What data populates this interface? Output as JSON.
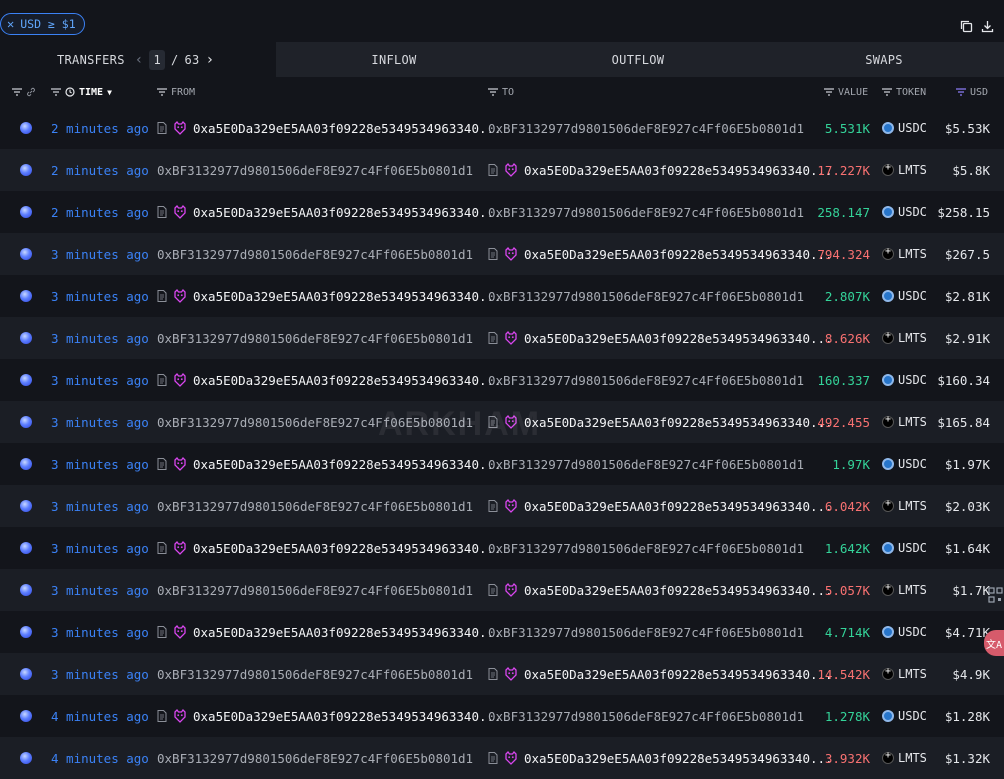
{
  "filter": {
    "label": "USD ≥ $1"
  },
  "top_actions": {
    "copy_icon": "copy-icon",
    "download_icon": "download-icon"
  },
  "tabs": {
    "transfers": "TRANSFERS",
    "page_current": "1",
    "page_sep": "/",
    "page_total": "63",
    "inflow": "INFLOW",
    "outflow": "OUTFLOW",
    "swaps": "SWAPS"
  },
  "columns": {
    "time": "TIME",
    "from": "FROM",
    "to": "TO",
    "value": "VALUE",
    "token": "TOKEN",
    "usd": "USD"
  },
  "watermark": "ARKHAM",
  "side_translate": "文A",
  "colors": {
    "time_link": "#3b82f6",
    "value_in": "#34d399",
    "value_out": "#f87171",
    "active_tab_bg": "#13151b"
  },
  "rows": [
    {
      "time": "2 minutes ago",
      "from": "0xa5E0Da329eE5AA03f09228e5349534963340...",
      "from_entity": true,
      "to": "0xBF3132977d9801506deF8E927c4Ff06E5b0801d1",
      "to_entity": false,
      "value": "5.531K",
      "dir": "pos",
      "token": "USDC",
      "usd": "$5.53K"
    },
    {
      "time": "2 minutes ago",
      "from": "0xBF3132977d9801506deF8E927c4Ff06E5b0801d1",
      "from_entity": false,
      "to": "0xa5E0Da329eE5AA03f09228e5349534963340...",
      "to_entity": true,
      "value": "17.227K",
      "dir": "neg",
      "token": "LMTS",
      "usd": "$5.8K"
    },
    {
      "time": "2 minutes ago",
      "from": "0xa5E0Da329eE5AA03f09228e5349534963340...",
      "from_entity": true,
      "to": "0xBF3132977d9801506deF8E927c4Ff06E5b0801d1",
      "to_entity": false,
      "value": "258.147",
      "dir": "pos",
      "token": "USDC",
      "usd": "$258.15"
    },
    {
      "time": "3 minutes ago",
      "from": "0xBF3132977d9801506deF8E927c4Ff06E5b0801d1",
      "from_entity": false,
      "to": "0xa5E0Da329eE5AA03f09228e5349534963340...",
      "to_entity": true,
      "value": "794.324",
      "dir": "neg",
      "token": "LMTS",
      "usd": "$267.5"
    },
    {
      "time": "3 minutes ago",
      "from": "0xa5E0Da329eE5AA03f09228e5349534963340...",
      "from_entity": true,
      "to": "0xBF3132977d9801506deF8E927c4Ff06E5b0801d1",
      "to_entity": false,
      "value": "2.807K",
      "dir": "pos",
      "token": "USDC",
      "usd": "$2.81K"
    },
    {
      "time": "3 minutes ago",
      "from": "0xBF3132977d9801506deF8E927c4Ff06E5b0801d1",
      "from_entity": false,
      "to": "0xa5E0Da329eE5AA03f09228e5349534963340...",
      "to_entity": true,
      "value": "8.626K",
      "dir": "neg",
      "token": "LMTS",
      "usd": "$2.91K"
    },
    {
      "time": "3 minutes ago",
      "from": "0xa5E0Da329eE5AA03f09228e5349534963340...",
      "from_entity": true,
      "to": "0xBF3132977d9801506deF8E927c4Ff06E5b0801d1",
      "to_entity": false,
      "value": "160.337",
      "dir": "pos",
      "token": "USDC",
      "usd": "$160.34"
    },
    {
      "time": "3 minutes ago",
      "from": "0xBF3132977d9801506deF8E927c4Ff06E5b0801d1",
      "from_entity": false,
      "to": "0xa5E0Da329eE5AA03f09228e5349534963340...",
      "to_entity": true,
      "value": "492.455",
      "dir": "neg",
      "token": "LMTS",
      "usd": "$165.84"
    },
    {
      "time": "3 minutes ago",
      "from": "0xa5E0Da329eE5AA03f09228e5349534963340...",
      "from_entity": true,
      "to": "0xBF3132977d9801506deF8E927c4Ff06E5b0801d1",
      "to_entity": false,
      "value": "1.97K",
      "dir": "pos",
      "token": "USDC",
      "usd": "$1.97K"
    },
    {
      "time": "3 minutes ago",
      "from": "0xBF3132977d9801506deF8E927c4Ff06E5b0801d1",
      "from_entity": false,
      "to": "0xa5E0Da329eE5AA03f09228e5349534963340...",
      "to_entity": true,
      "value": "6.042K",
      "dir": "neg",
      "token": "LMTS",
      "usd": "$2.03K"
    },
    {
      "time": "3 minutes ago",
      "from": "0xa5E0Da329eE5AA03f09228e5349534963340...",
      "from_entity": true,
      "to": "0xBF3132977d9801506deF8E927c4Ff06E5b0801d1",
      "to_entity": false,
      "value": "1.642K",
      "dir": "pos",
      "token": "USDC",
      "usd": "$1.64K"
    },
    {
      "time": "3 minutes ago",
      "from": "0xBF3132977d9801506deF8E927c4Ff06E5b0801d1",
      "from_entity": false,
      "to": "0xa5E0Da329eE5AA03f09228e5349534963340...",
      "to_entity": true,
      "value": "5.057K",
      "dir": "neg",
      "token": "LMTS",
      "usd": "$1.7K"
    },
    {
      "time": "3 minutes ago",
      "from": "0xa5E0Da329eE5AA03f09228e5349534963340...",
      "from_entity": true,
      "to": "0xBF3132977d9801506deF8E927c4Ff06E5b0801d1",
      "to_entity": false,
      "value": "4.714K",
      "dir": "pos",
      "token": "USDC",
      "usd": "$4.71K"
    },
    {
      "time": "3 minutes ago",
      "from": "0xBF3132977d9801506deF8E927c4Ff06E5b0801d1",
      "from_entity": false,
      "to": "0xa5E0Da329eE5AA03f09228e5349534963340...",
      "to_entity": true,
      "value": "14.542K",
      "dir": "neg",
      "token": "LMTS",
      "usd": "$4.9K"
    },
    {
      "time": "4 minutes ago",
      "from": "0xa5E0Da329eE5AA03f09228e5349534963340...",
      "from_entity": true,
      "to": "0xBF3132977d9801506deF8E927c4Ff06E5b0801d1",
      "to_entity": false,
      "value": "1.278K",
      "dir": "pos",
      "token": "USDC",
      "usd": "$1.28K"
    },
    {
      "time": "4 minutes ago",
      "from": "0xBF3132977d9801506deF8E927c4Ff06E5b0801d1",
      "from_entity": false,
      "to": "0xa5E0Da329eE5AA03f09228e5349534963340...",
      "to_entity": true,
      "value": "3.932K",
      "dir": "neg",
      "token": "LMTS",
      "usd": "$1.32K"
    }
  ]
}
